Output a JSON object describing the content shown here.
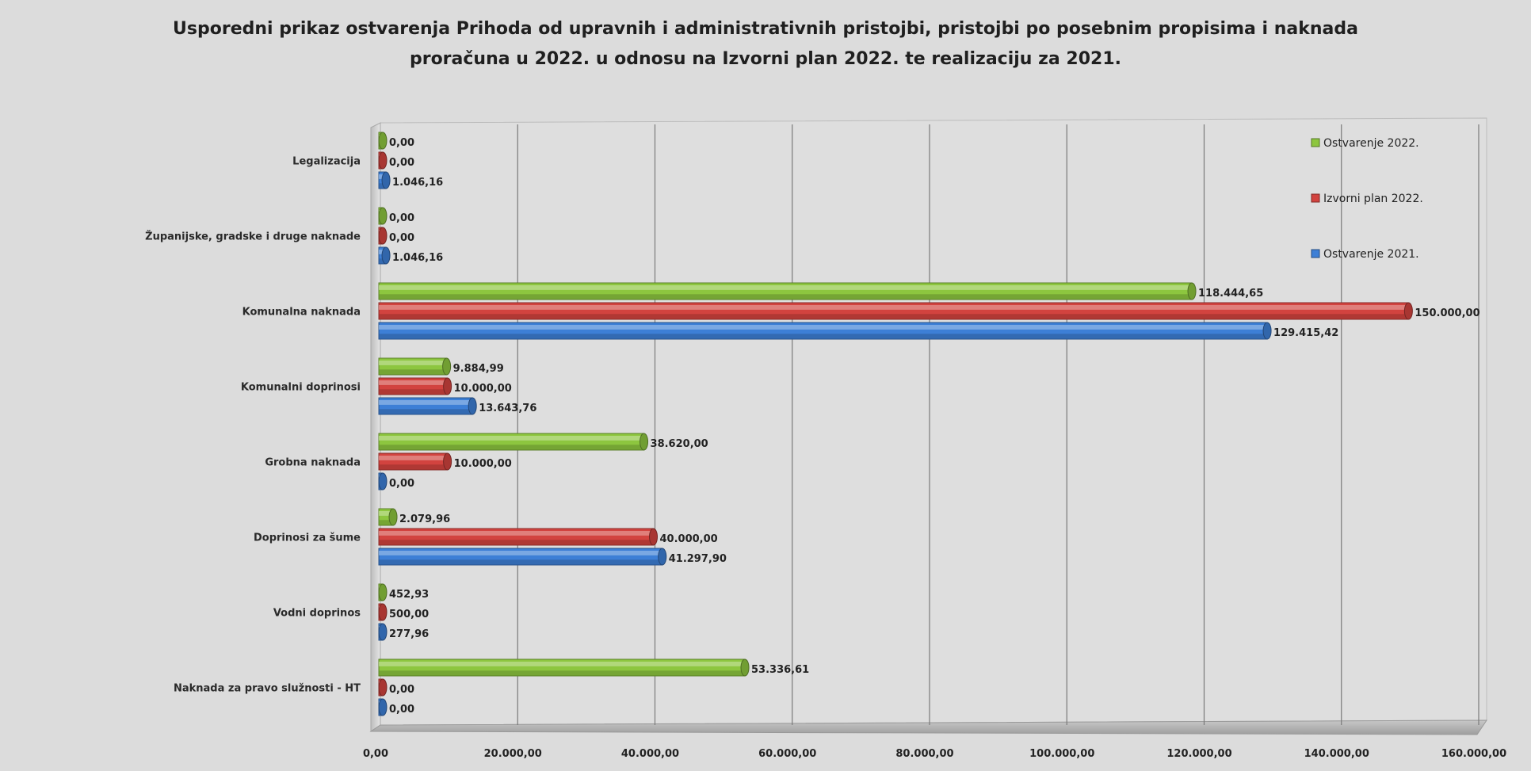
{
  "chart_data": {
    "type": "bar",
    "orientation": "horizontal",
    "title_line1": "Usporedni prikaz ostvarenja Prihoda od upravnih i administrativnih pristojbi, pristojbi po posebnim propisima i naknada",
    "title_line2": "proračuna u 2022. u odnosu na Izvorni plan 2022. te realizaciju za 2021.",
    "categories": [
      "Legalizacija",
      "Županijske, gradske i druge naknade",
      "Komunalna naknada",
      "Komunalni doprinosi",
      "Grobna naknada",
      "Doprinosi za šume",
      "Vodni doprinos",
      "Naknada za pravo služnosti - HT"
    ],
    "series": [
      {
        "name": "Ostvarenje 2022.",
        "color": "#8dc63f",
        "values": [
          0,
          0,
          118444.65,
          9884.99,
          38620.0,
          2079.96,
          452.93,
          53336.61
        ],
        "labels": [
          "0,00",
          "0,00",
          "118.444,65",
          "9.884,99",
          "38.620,00",
          "2.079,96",
          "452,93",
          "53.336,61"
        ]
      },
      {
        "name": "Izvorni plan 2022.",
        "color": "#d2433f",
        "values": [
          0,
          0,
          150000.0,
          10000.0,
          10000.0,
          40000.0,
          500.0,
          0
        ],
        "labels": [
          "0,00",
          "0,00",
          "150.000,00",
          "10.000,00",
          "10.000,00",
          "40.000,00",
          "500,00",
          "0,00"
        ]
      },
      {
        "name": "Ostvarenje 2021.",
        "color": "#3d7fd6",
        "values": [
          1046.16,
          1046.16,
          129415.42,
          13643.76,
          0,
          41297.9,
          277.96,
          0
        ],
        "labels": [
          "1.046,16",
          "1.046,16",
          "129.415,42",
          "13.643,76",
          "0,00",
          "41.297,90",
          "277,96",
          "0,00"
        ]
      }
    ],
    "x_ticks": [
      "0,00",
      "20.000,00",
      "40.000,00",
      "60.000,00",
      "80.000,00",
      "100.000,00",
      "120.000,00",
      "140.000,00",
      "160.000,00"
    ],
    "xlim": [
      0,
      160000
    ],
    "grid": true,
    "legend_position": "top-right"
  }
}
